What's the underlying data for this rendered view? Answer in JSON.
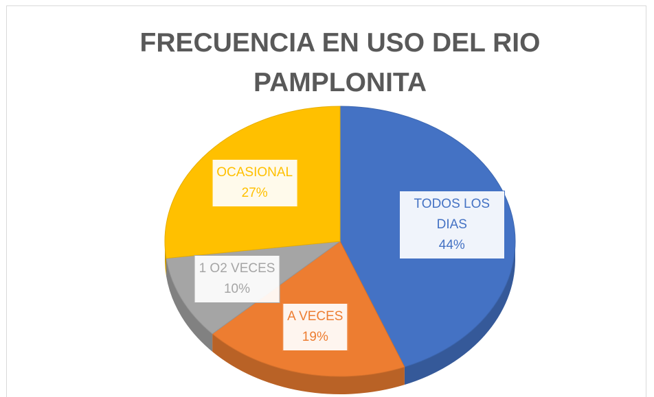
{
  "chart_data": {
    "type": "pie",
    "title": "FRECUENCIA EN USO DEL RIO PAMPLONITA",
    "categories": [
      "TODOS LOS DIAS",
      "A VECES",
      "1 O2 VECES",
      "OCASIONAL"
    ],
    "values": [
      44,
      19,
      10,
      27
    ],
    "value_labels": [
      "44%",
      "19%",
      "10%",
      "27%"
    ],
    "colors": [
      "#4472c4",
      "#ed7d31",
      "#a5a5a5",
      "#ffc000"
    ]
  }
}
